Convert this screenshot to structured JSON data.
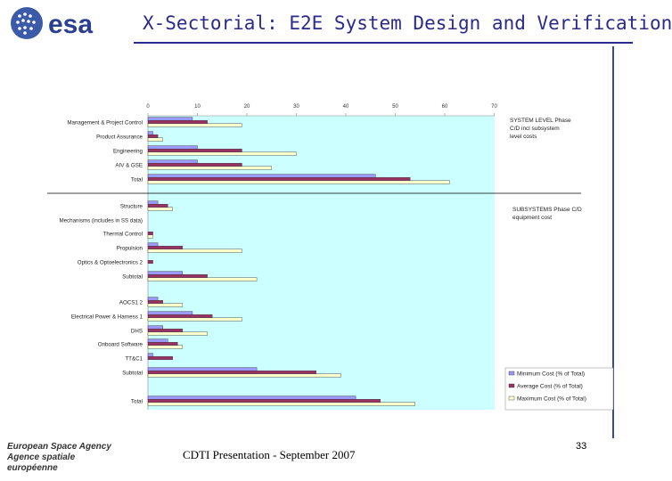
{
  "header": {
    "logo_text": "esa",
    "title": "X-Sectorial: E2E System Design and Verification"
  },
  "footer": {
    "org_line1": "European Space Agency",
    "org_line2": "Agence spatiale européenne",
    "presentation": "CDTI Presentation - September 2007",
    "page_number": "33"
  },
  "colors": {
    "plot_background": "#ccffff",
    "min_series": "#9999ff",
    "avg_series": "#993366",
    "max_series": "#ffffcc",
    "title_blue": "#2a2a8c"
  },
  "chart_data": {
    "type": "bar",
    "orientation": "horizontal",
    "x_ticks": [
      "0",
      "10",
      "20",
      "30",
      "40",
      "50",
      "60",
      "70"
    ],
    "xlim": [
      0,
      70
    ],
    "grid": false,
    "legend_position": "bottom-right",
    "annotations": [
      "SYSTEM LEVEL Phase C/D incl subsystem level costs",
      "SUBSYSTEMS Phase C/D equipment cost"
    ],
    "categories": [
      "Management & Project Control",
      "Product Assurance",
      "Engineering",
      "AIV & GSE",
      "Total",
      "Structure",
      "Mechanisms (includes in SS data)",
      "Thermal Control",
      "Propulsion",
      "Optics & Optoelectronics 2",
      "Subtotal",
      "AOCS1 2",
      "Electrical Power & Harness 1",
      "DHS",
      "Onboard Software",
      "TT&C1",
      "Subtotal",
      "Total"
    ],
    "series": [
      {
        "name": "Minimum Cost (% of Total)",
        "values": [
          9,
          1,
          10,
          10,
          46,
          2,
          0,
          0,
          2,
          0,
          7,
          2,
          9,
          3,
          4,
          1,
          22,
          42
        ]
      },
      {
        "name": "Average Cost (% of Total)",
        "values": [
          12,
          2,
          19,
          19,
          53,
          4,
          0,
          1,
          7,
          1,
          12,
          3,
          13,
          7,
          6,
          5,
          34,
          47
        ]
      },
      {
        "name": "Maximum Cost (% of Total)",
        "values": [
          19,
          3,
          30,
          25,
          61,
          5,
          0,
          1,
          19,
          0,
          22,
          7,
          19,
          12,
          7,
          0,
          39,
          54
        ]
      }
    ]
  }
}
